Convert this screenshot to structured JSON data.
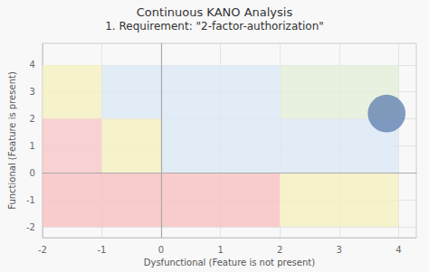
{
  "chart_data": {
    "type": "scatter",
    "title": "Continuous KANO Analysis",
    "subtitle": "1. Requirement: \"2-factor-authorization\"",
    "xlabel": "Dysfunctional (Feature is not present)",
    "ylabel": "Functional (Feature is present)",
    "x": [
      3.8
    ],
    "y": [
      2.2
    ],
    "size": [
      900
    ],
    "color": "#5577aa",
    "xlim": [
      -2,
      4.3
    ],
    "ylim": [
      -2.4,
      4.8
    ],
    "xticks": [
      -2,
      -1,
      0,
      1,
      2,
      3,
      4
    ],
    "yticks": [
      -2,
      -1,
      0,
      1,
      2,
      3,
      4
    ],
    "grid": true,
    "regions": [
      {
        "x0": -2,
        "x1": -1,
        "y0": 2,
        "y1": 4,
        "color": "#f5f0c0"
      },
      {
        "x0": -1,
        "x1": 0,
        "y0": 2,
        "y1": 4,
        "color": "#dce8f5"
      },
      {
        "x0": -2,
        "x1": -1,
        "y0": 0,
        "y1": 2,
        "color": "#f8c8c8"
      },
      {
        "x0": -1,
        "x1": 0,
        "y0": 0,
        "y1": 2,
        "color": "#f5f0c0"
      },
      {
        "x0": -2,
        "x1": 0,
        "y0": -2,
        "y1": 0,
        "color": "#f8c0c0"
      },
      {
        "x0": 0,
        "x1": 2,
        "y0": 0,
        "y1": 4,
        "color": "#dce8f5"
      },
      {
        "x0": 0,
        "x1": 2,
        "y0": -2,
        "y1": 0,
        "color": "#f8c0c0"
      },
      {
        "x0": 2,
        "x1": 4,
        "y0": 2,
        "y1": 4,
        "color": "#e4eed8"
      },
      {
        "x0": 2,
        "x1": 4,
        "y0": 0,
        "y1": 2,
        "color": "#dce8f5"
      },
      {
        "x0": 2,
        "x1": 4,
        "y0": -2,
        "y1": 0,
        "color": "#f5f0c0"
      }
    ]
  }
}
